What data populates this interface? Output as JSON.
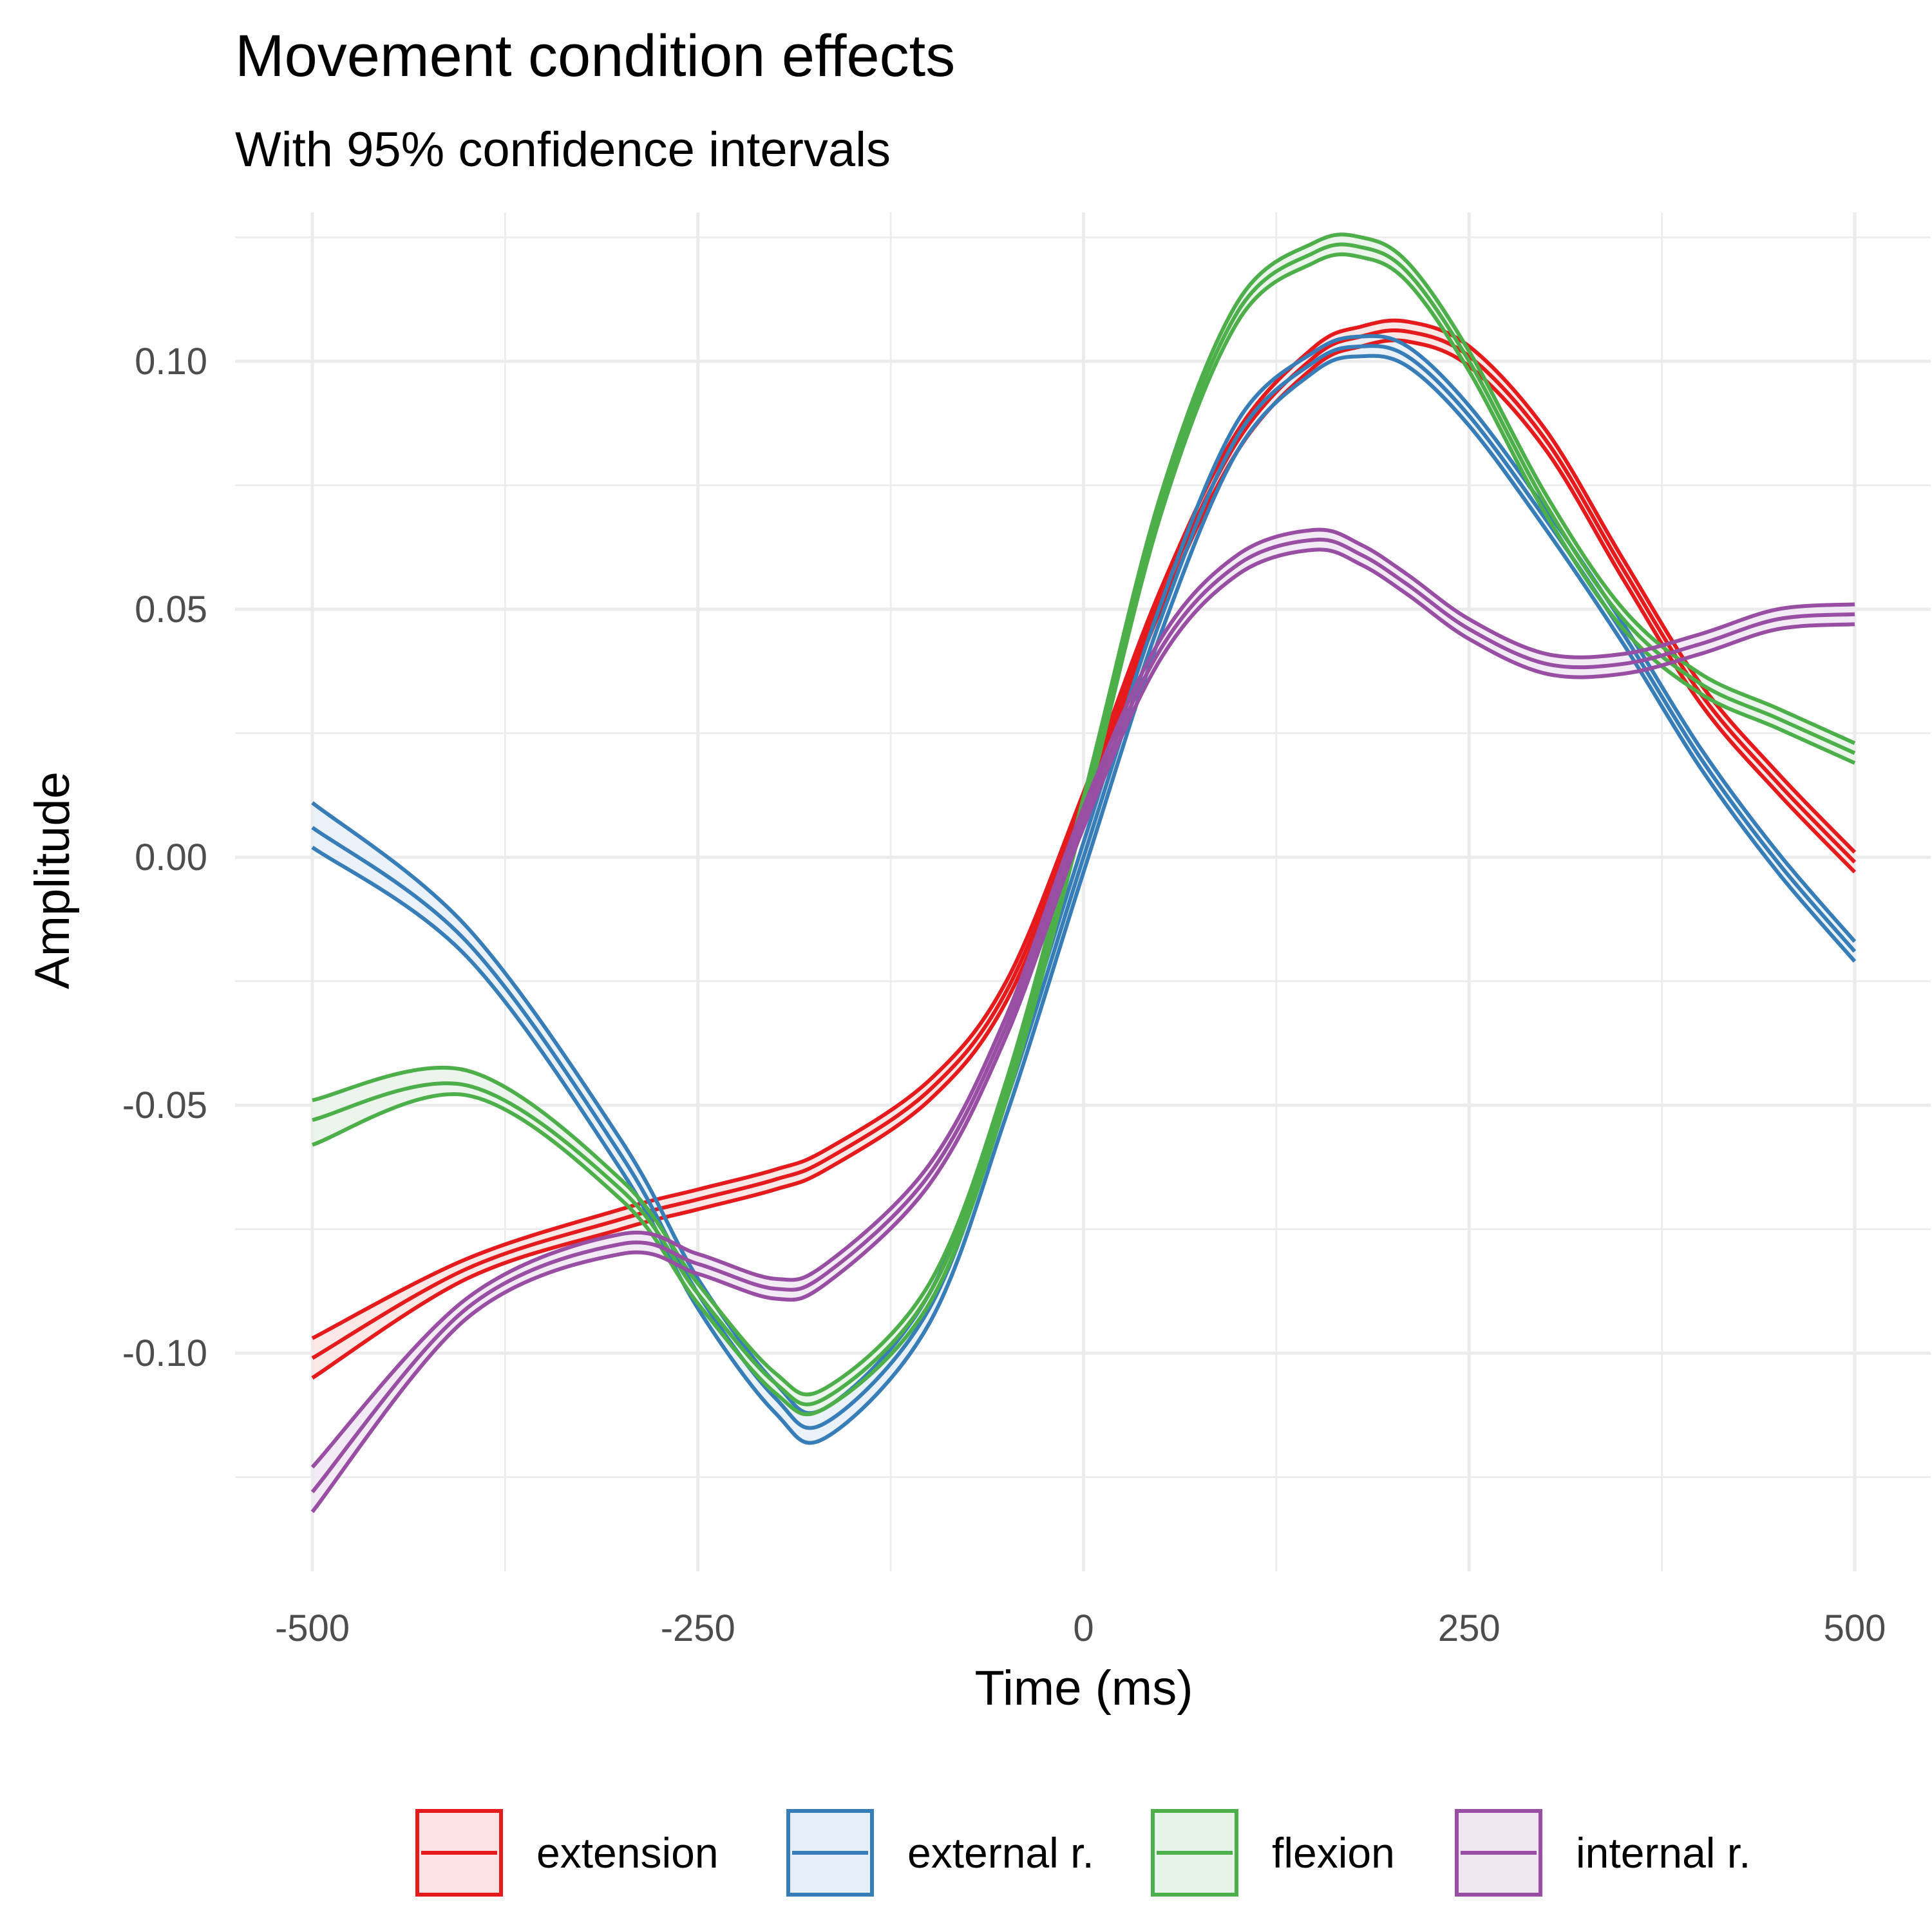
{
  "chart_data": {
    "type": "line",
    "title": "Movement condition effects",
    "subtitle": "With 95% confidence intervals",
    "xlabel": "Time (ms)",
    "ylabel": "Amplitude",
    "xlim": [
      -500,
      500
    ],
    "ylim": [
      -0.144,
      0.13
    ],
    "x_ticks": [
      -500,
      -250,
      0,
      250,
      500
    ],
    "x_tick_labels": [
      "-500",
      "-250",
      "0",
      "250",
      "500"
    ],
    "y_ticks": [
      -0.1,
      -0.05,
      0.0,
      0.05,
      0.1
    ],
    "y_tick_labels": [
      "-0.10",
      "-0.05",
      "0.00",
      "0.05",
      "0.10"
    ],
    "grid": true,
    "legend_position": "bottom",
    "x": [
      -500,
      -400,
      -300,
      -250,
      -200,
      -167,
      -100,
      -50,
      0,
      50,
      100,
      150,
      180,
      210,
      250,
      300,
      350,
      400,
      450,
      500
    ],
    "series": [
      {
        "name": "extension",
        "color": "#E41A1C",
        "fill": "#FBE3E3",
        "mean": [
          -0.101,
          -0.083,
          -0.073,
          -0.069,
          -0.065,
          -0.061,
          -0.047,
          -0.027,
          0.011,
          0.052,
          0.084,
          0.101,
          0.105,
          0.106,
          0.101,
          0.084,
          0.058,
          0.033,
          0.015,
          -0.001
        ],
        "lower": [
          -0.105,
          -0.085,
          -0.075,
          -0.071,
          -0.067,
          -0.063,
          -0.049,
          -0.029,
          0.009,
          0.05,
          0.082,
          0.099,
          0.103,
          0.104,
          0.099,
          0.082,
          0.056,
          0.031,
          0.013,
          -0.003
        ],
        "upper": [
          -0.097,
          -0.081,
          -0.071,
          -0.067,
          -0.063,
          -0.059,
          -0.045,
          -0.025,
          0.013,
          0.054,
          0.086,
          0.103,
          0.107,
          0.108,
          0.103,
          0.086,
          0.06,
          0.035,
          0.017,
          0.001
        ]
      },
      {
        "name": "external r.",
        "color": "#377EB8",
        "fill": "#E6EEF7",
        "mean": [
          0.006,
          -0.017,
          -0.06,
          -0.088,
          -0.109,
          -0.114,
          -0.091,
          -0.049,
          0.0,
          0.048,
          0.085,
          0.1,
          0.103,
          0.101,
          0.089,
          0.068,
          0.045,
          0.02,
          -0.001,
          -0.019
        ],
        "lower": [
          0.002,
          -0.02,
          -0.063,
          -0.091,
          -0.112,
          -0.117,
          -0.094,
          -0.052,
          -0.003,
          0.045,
          0.082,
          0.098,
          0.101,
          0.099,
          0.087,
          0.066,
          0.043,
          0.018,
          -0.003,
          -0.021
        ],
        "upper": [
          0.011,
          -0.014,
          -0.057,
          -0.085,
          -0.106,
          -0.111,
          -0.088,
          -0.046,
          0.003,
          0.051,
          0.088,
          0.102,
          0.105,
          0.103,
          0.091,
          0.07,
          0.047,
          0.022,
          0.001,
          -0.017
        ]
      },
      {
        "name": "flexion",
        "color": "#4DAF4A",
        "fill": "#E8F3E7",
        "mean": [
          -0.053,
          -0.046,
          -0.067,
          -0.088,
          -0.106,
          -0.109,
          -0.088,
          -0.047,
          0.01,
          0.071,
          0.11,
          0.122,
          0.123,
          0.118,
          0.1,
          0.071,
          0.048,
          0.035,
          0.028,
          0.021
        ],
        "lower": [
          -0.058,
          -0.048,
          -0.069,
          -0.09,
          -0.108,
          -0.111,
          -0.09,
          -0.049,
          0.008,
          0.069,
          0.108,
          0.12,
          0.121,
          0.116,
          0.098,
          0.069,
          0.046,
          0.033,
          0.026,
          0.019
        ],
        "upper": [
          -0.049,
          -0.043,
          -0.065,
          -0.086,
          -0.104,
          -0.107,
          -0.086,
          -0.045,
          0.012,
          0.073,
          0.112,
          0.124,
          0.125,
          0.12,
          0.102,
          0.073,
          0.05,
          0.037,
          0.03,
          0.023
        ]
      },
      {
        "name": "internal r.",
        "color": "#984EA3",
        "fill": "#F0E6F2",
        "mean": [
          -0.128,
          -0.091,
          -0.078,
          -0.082,
          -0.087,
          -0.084,
          -0.064,
          -0.034,
          0.008,
          0.042,
          0.059,
          0.064,
          0.061,
          0.055,
          0.046,
          0.039,
          0.039,
          0.043,
          0.048,
          0.049
        ],
        "lower": [
          -0.132,
          -0.093,
          -0.08,
          -0.084,
          -0.089,
          -0.086,
          -0.066,
          -0.036,
          0.006,
          0.04,
          0.057,
          0.062,
          0.059,
          0.053,
          0.044,
          0.037,
          0.037,
          0.041,
          0.046,
          0.047
        ],
        "upper": [
          -0.123,
          -0.089,
          -0.076,
          -0.08,
          -0.085,
          -0.082,
          -0.062,
          -0.032,
          0.01,
          0.044,
          0.061,
          0.066,
          0.063,
          0.057,
          0.048,
          0.041,
          0.041,
          0.045,
          0.05,
          0.051
        ]
      }
    ]
  }
}
